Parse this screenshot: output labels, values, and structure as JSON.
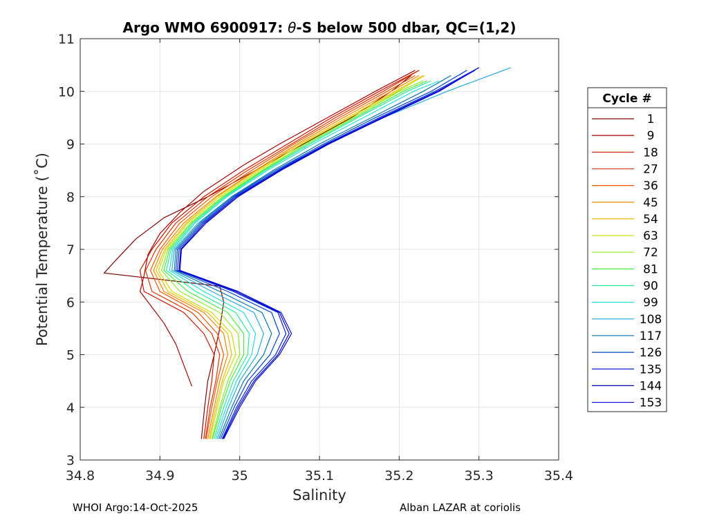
{
  "chart_data": {
    "type": "line",
    "title_prefix": "Argo WMO 6900917: ",
    "title_theta": "θ",
    "title_suffix": "-S below 500 dbar,  QC=(1,2)",
    "xlabel": "Salinity",
    "ylabel": "Potential Temperature (˚C)",
    "xlim": [
      34.8,
      35.4
    ],
    "ylim": [
      3,
      11
    ],
    "xticks": [
      34.8,
      34.9,
      35.0,
      35.1,
      35.2,
      35.3,
      35.4
    ],
    "xtick_labels": [
      "34.8",
      "34.9",
      "35",
      "35.1",
      "35.2",
      "35.3",
      "35.4"
    ],
    "yticks": [
      3,
      4,
      5,
      6,
      7,
      8,
      9,
      10,
      11
    ],
    "ytick_labels": [
      "3",
      "4",
      "5",
      "6",
      "7",
      "8",
      "9",
      "10",
      "11"
    ],
    "grid": true,
    "legend_title": "Cycle #",
    "legend_position": "outside-right",
    "legend": [
      {
        "label": "1",
        "color": "#800000"
      },
      {
        "label": "9",
        "color": "#aa0000"
      },
      {
        "label": "18",
        "color": "#cc1100"
      },
      {
        "label": "27",
        "color": "#dd3300"
      },
      {
        "label": "36",
        "color": "#ee5500"
      },
      {
        "label": "45",
        "color": "#ee8800"
      },
      {
        "label": "54",
        "color": "#eebb00"
      },
      {
        "label": "63",
        "color": "#ccdd00"
      },
      {
        "label": "72",
        "color": "#88ee22"
      },
      {
        "label": "81",
        "color": "#44ee44"
      },
      {
        "label": "90",
        "color": "#22ee99"
      },
      {
        "label": "99",
        "color": "#22dddd"
      },
      {
        "label": "108",
        "color": "#22aadd"
      },
      {
        "label": "117",
        "color": "#0077aa"
      },
      {
        "label": "126",
        "color": "#0044cc"
      },
      {
        "label": "135",
        "color": "#0022dd"
      },
      {
        "label": "144",
        "color": "#0000bb"
      },
      {
        "label": "153",
        "color": "#0000dd"
      }
    ],
    "series": [
      {
        "name": "cycle 1",
        "color": "#800000",
        "theta": [
          3.4,
          4.0,
          4.5,
          5.0,
          5.5,
          6.0,
          6.3,
          6.55,
          6.8,
          7.2,
          7.6,
          8.0,
          8.5,
          9.0,
          9.5,
          10.0,
          10.3
        ],
        "salinity": [
          34.952,
          34.956,
          34.96,
          34.968,
          34.975,
          34.98,
          34.975,
          34.83,
          34.845,
          34.87,
          34.905,
          34.96,
          35.02,
          35.08,
          35.14,
          35.19,
          35.215
        ]
      },
      {
        "name": "cycle 9",
        "color": "#aa0000",
        "theta": [
          4.4,
          4.8,
          5.2,
          5.6,
          5.9,
          6.2,
          6.5,
          6.9,
          7.3,
          7.7,
          8.1,
          8.6,
          9.0,
          9.5,
          10.0,
          10.4
        ],
        "salinity": [
          34.94,
          34.93,
          34.92,
          34.905,
          34.89,
          34.875,
          34.88,
          34.885,
          34.9,
          34.925,
          34.955,
          35.005,
          35.05,
          35.11,
          35.17,
          35.22
        ]
      },
      {
        "name": "cycle 18",
        "color": "#cc1100",
        "theta": [
          3.4,
          4.0,
          4.5,
          5.0,
          5.4,
          5.8,
          6.2,
          6.6,
          7.0,
          7.5,
          8.0,
          8.5,
          9.0,
          9.5,
          10.0,
          10.4
        ],
        "salinity": [
          34.955,
          34.96,
          34.965,
          34.968,
          34.955,
          34.93,
          34.88,
          34.875,
          34.89,
          34.915,
          34.955,
          35.005,
          35.06,
          35.115,
          35.175,
          35.225
        ]
      },
      {
        "name": "cycle 27",
        "color": "#dd3300",
        "theta": [
          3.4,
          4.0,
          4.5,
          5.0,
          5.4,
          5.8,
          6.2,
          6.6,
          7.0,
          7.5,
          8.0,
          8.5,
          9.0,
          9.5,
          10.0,
          10.4
        ],
        "salinity": [
          34.957,
          34.963,
          34.97,
          34.975,
          34.965,
          34.94,
          34.89,
          34.882,
          34.895,
          34.92,
          34.96,
          35.01,
          35.065,
          35.12,
          35.18,
          35.225
        ]
      },
      {
        "name": "cycle 36",
        "color": "#ee5500",
        "theta": [
          3.4,
          4.0,
          4.5,
          5.0,
          5.4,
          5.8,
          6.2,
          6.6,
          7.0,
          7.5,
          8.0,
          8.5,
          9.0,
          9.5,
          10.0,
          10.3
        ],
        "salinity": [
          34.958,
          34.965,
          34.972,
          34.98,
          34.972,
          34.948,
          34.9,
          34.888,
          34.9,
          34.925,
          34.965,
          35.015,
          35.068,
          35.125,
          35.185,
          35.22
        ]
      },
      {
        "name": "cycle 45",
        "color": "#ee8800",
        "theta": [
          3.4,
          4.0,
          4.5,
          5.0,
          5.4,
          5.8,
          6.2,
          6.6,
          7.0,
          7.5,
          8.0,
          8.5,
          9.0,
          9.5,
          10.0,
          10.3
        ],
        "salinity": [
          34.96,
          34.968,
          34.975,
          34.985,
          34.98,
          34.955,
          34.905,
          34.892,
          34.903,
          34.93,
          34.97,
          35.02,
          35.072,
          35.13,
          35.19,
          35.225
        ]
      },
      {
        "name": "cycle 54",
        "color": "#eebb00",
        "theta": [
          3.4,
          4.0,
          4.5,
          5.0,
          5.4,
          5.8,
          6.2,
          6.6,
          7.0,
          7.5,
          8.0,
          8.5,
          9.0,
          9.5,
          10.0,
          10.3
        ],
        "salinity": [
          34.962,
          34.97,
          34.978,
          34.99,
          34.985,
          34.96,
          34.91,
          34.895,
          34.906,
          34.933,
          34.972,
          35.022,
          35.075,
          35.135,
          35.195,
          35.23
        ]
      },
      {
        "name": "cycle 63",
        "color": "#ccdd00",
        "theta": [
          3.4,
          4.0,
          4.5,
          5.0,
          5.4,
          5.8,
          6.2,
          6.6,
          7.0,
          7.5,
          8.0,
          8.5,
          9.0,
          9.5,
          10.0,
          10.3
        ],
        "salinity": [
          34.963,
          34.972,
          34.98,
          34.995,
          34.99,
          34.965,
          34.915,
          34.898,
          34.908,
          34.935,
          34.975,
          35.025,
          35.078,
          35.138,
          35.198,
          35.232
        ]
      },
      {
        "name": "cycle 72",
        "color": "#88ee22",
        "theta": [
          3.4,
          4.0,
          4.5,
          5.0,
          5.4,
          5.8,
          6.2,
          6.6,
          7.0,
          7.5,
          8.0,
          8.5,
          9.0,
          9.5,
          10.0,
          10.2
        ],
        "salinity": [
          34.965,
          34.975,
          34.985,
          35.0,
          34.998,
          34.975,
          34.925,
          34.902,
          34.91,
          34.938,
          34.978,
          35.028,
          35.082,
          35.142,
          35.2,
          35.23
        ]
      },
      {
        "name": "cycle 81",
        "color": "#44ee44",
        "theta": [
          3.4,
          4.0,
          4.5,
          5.0,
          5.4,
          5.8,
          6.2,
          6.6,
          7.0,
          7.5,
          8.0,
          8.5,
          9.0,
          9.5,
          10.0,
          10.2
        ],
        "salinity": [
          34.966,
          34.977,
          34.988,
          35.005,
          35.005,
          34.985,
          34.935,
          34.905,
          34.912,
          34.94,
          34.98,
          35.03,
          35.085,
          35.145,
          35.205,
          35.235
        ]
      },
      {
        "name": "cycle 90",
        "color": "#22ee99",
        "theta": [
          3.4,
          4.0,
          4.5,
          5.0,
          5.4,
          5.8,
          6.2,
          6.6,
          7.0,
          7.5,
          8.0,
          8.5,
          9.0,
          9.5,
          10.0,
          10.2
        ],
        "salinity": [
          34.968,
          34.98,
          34.992,
          35.01,
          35.012,
          34.995,
          34.945,
          34.908,
          34.914,
          34.942,
          34.982,
          35.032,
          35.088,
          35.148,
          35.21,
          35.24
        ]
      },
      {
        "name": "cycle 99",
        "color": "#22dddd",
        "theta": [
          3.4,
          4.0,
          4.5,
          5.0,
          5.4,
          5.8,
          6.2,
          6.6,
          7.0,
          7.5,
          8.0,
          8.5,
          9.0,
          9.5,
          10.0,
          10.2
        ],
        "salinity": [
          34.97,
          34.983,
          34.996,
          35.015,
          35.02,
          35.005,
          34.955,
          34.912,
          34.916,
          34.944,
          34.984,
          35.035,
          35.092,
          35.155,
          35.218,
          35.25
        ]
      },
      {
        "name": "cycle 108",
        "color": "#22aadd",
        "theta": [
          3.4,
          4.0,
          4.5,
          5.0,
          5.4,
          5.8,
          6.2,
          6.6,
          7.0,
          7.5,
          8.0,
          8.5,
          9.0,
          9.5,
          10.0,
          10.45
        ],
        "salinity": [
          34.972,
          34.986,
          35.0,
          35.022,
          35.03,
          35.018,
          34.965,
          34.915,
          34.918,
          34.948,
          34.99,
          35.045,
          35.11,
          35.18,
          35.26,
          35.34
        ]
      },
      {
        "name": "cycle 117",
        "color": "#0077aa",
        "theta": [
          3.4,
          4.0,
          4.5,
          5.0,
          5.4,
          5.8,
          6.2,
          6.6,
          7.0,
          7.5,
          8.0,
          8.5,
          9.0,
          9.5,
          10.0,
          10.3
        ],
        "salinity": [
          34.974,
          34.99,
          35.005,
          35.03,
          35.04,
          35.028,
          34.975,
          34.918,
          34.92,
          34.95,
          34.99,
          35.042,
          35.1,
          35.165,
          35.23,
          35.265
        ]
      },
      {
        "name": "cycle 126",
        "color": "#0044cc",
        "theta": [
          3.4,
          4.0,
          4.5,
          5.0,
          5.4,
          5.8,
          6.2,
          6.6,
          7.0,
          7.5,
          8.0,
          8.5,
          9.0,
          9.5,
          10.0,
          10.4
        ],
        "salinity": [
          34.976,
          34.993,
          35.01,
          35.038,
          35.05,
          35.04,
          34.985,
          34.92,
          34.922,
          34.952,
          34.992,
          35.045,
          35.105,
          35.17,
          35.24,
          35.285
        ]
      },
      {
        "name": "cycle 135",
        "color": "#0022dd",
        "theta": [
          3.4,
          4.0,
          4.5,
          5.0,
          5.4,
          5.8,
          6.2,
          6.6,
          7.0,
          7.5,
          8.0,
          8.5,
          9.0,
          9.5,
          10.0,
          10.45
        ],
        "salinity": [
          34.978,
          34.996,
          35.015,
          35.045,
          35.058,
          35.048,
          34.992,
          34.922,
          34.924,
          34.954,
          34.994,
          35.048,
          35.108,
          35.175,
          35.245,
          35.3
        ]
      },
      {
        "name": "cycle 144",
        "color": "#0000bb",
        "theta": [
          3.4,
          4.0,
          4.5,
          5.0,
          5.4,
          5.8,
          6.2,
          6.6,
          7.0,
          7.5,
          8.0,
          8.5,
          9.0,
          9.5,
          10.0,
          10.4
        ],
        "salinity": [
          34.979,
          34.998,
          35.018,
          35.048,
          35.062,
          35.05,
          34.995,
          34.924,
          34.926,
          34.956,
          34.996,
          35.05,
          35.11,
          35.178,
          35.248,
          35.295
        ]
      },
      {
        "name": "cycle 153",
        "color": "#0000dd",
        "theta": [
          3.4,
          4.0,
          4.5,
          5.0,
          5.4,
          5.8,
          6.2,
          6.6,
          7.0,
          7.5,
          8.0,
          8.5,
          9.0,
          9.5,
          10.0,
          10.45
        ],
        "salinity": [
          34.98,
          35.0,
          35.02,
          35.05,
          35.065,
          35.052,
          34.998,
          34.925,
          34.927,
          34.958,
          34.998,
          35.052,
          35.112,
          35.18,
          35.25,
          35.3
        ]
      }
    ]
  },
  "footer": {
    "left": "WHOI Argo:14-Oct-2025",
    "right": "Alban LAZAR at coriolis"
  }
}
